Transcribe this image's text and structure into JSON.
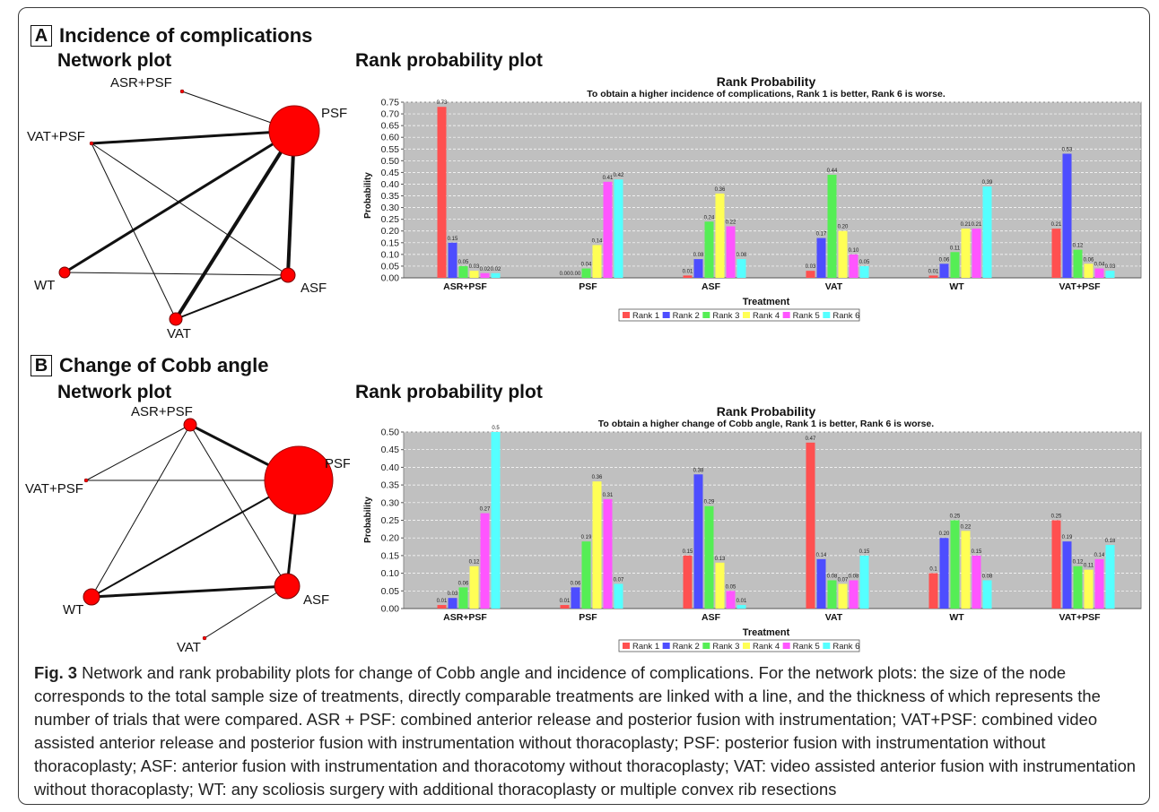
{
  "panels": [
    {
      "letter": "A",
      "title": "Incidence of complications",
      "network_title": "Network plot",
      "rank_title": "Rank probability plot"
    },
    {
      "letter": "B",
      "title": "Change of Cobb angle",
      "network_title": "Network plot",
      "rank_title": "Rank probability plot"
    }
  ],
  "network_A": {
    "nodes": [
      "ASR+PSF",
      "PSF",
      "VAT+PSF",
      "WT",
      "ASF",
      "VAT"
    ],
    "edges": [
      [
        "ASR+PSF",
        "PSF"
      ],
      [
        "VAT+PSF",
        "PSF"
      ],
      [
        "VAT+PSF",
        "ASF"
      ],
      [
        "VAT+PSF",
        "VAT"
      ],
      [
        "PSF",
        "WT"
      ],
      [
        "PSF",
        "VAT"
      ],
      [
        "PSF",
        "ASF"
      ],
      [
        "WT",
        "ASF"
      ],
      [
        "VAT",
        "ASF"
      ]
    ]
  },
  "network_B": {
    "nodes": [
      "ASR+PSF",
      "PSF",
      "VAT+PSF",
      "WT",
      "ASF",
      "VAT"
    ],
    "edges": [
      [
        "ASR+PSF",
        "PSF"
      ],
      [
        "ASR+PSF",
        "WT"
      ],
      [
        "ASR+PSF",
        "ASF"
      ],
      [
        "VAT+PSF",
        "ASR+PSF"
      ],
      [
        "VAT+PSF",
        "PSF"
      ],
      [
        "PSF",
        "WT"
      ],
      [
        "PSF",
        "ASF"
      ],
      [
        "WT",
        "ASF"
      ],
      [
        "ASF",
        "VAT"
      ]
    ]
  },
  "colors": {
    "rank1": "#ff5050",
    "rank2": "#4d4dff",
    "rank3": "#55ee55",
    "rank4": "#ffff55",
    "rank5": "#ff55ff",
    "rank6": "#55ffff",
    "plot_bg": "#c0c0c0",
    "node": "#ff0000"
  },
  "chart_data": [
    {
      "type": "bar",
      "title": "Rank Probability",
      "subtitle": "To obtain  a higher incidence of complications, Rank 1 is better, Rank 6 is worse.",
      "xlabel": "Treatment",
      "ylabel": "Probability",
      "ylim": [
        0,
        0.75
      ],
      "yticks": [
        "0.00",
        "0.05",
        "0.10",
        "0.15",
        "0.20",
        "0.25",
        "0.30",
        "0.35",
        "0.40",
        "0.45",
        "0.50",
        "0.55",
        "0.60",
        "0.65",
        "0.70",
        "0.75"
      ],
      "grid": true,
      "legend": "bottom",
      "categories": [
        "ASR+PSF",
        "PSF",
        "ASF",
        "VAT",
        "WT",
        "VAT+PSF"
      ],
      "series": [
        {
          "name": "Rank 1",
          "values": [
            0.73,
            0.0,
            0.01,
            0.03,
            0.01,
            0.21
          ],
          "labels": [
            "0.73",
            "0.00",
            "0.01",
            "0.03",
            "0.01",
            "0.21"
          ]
        },
        {
          "name": "Rank 2",
          "values": [
            0.15,
            0.0,
            0.08,
            0.17,
            0.06,
            0.53
          ],
          "labels": [
            "0.15",
            "0.00",
            "0.08",
            "0.17",
            "0.06",
            "0.53"
          ]
        },
        {
          "name": "Rank 3",
          "values": [
            0.05,
            0.04,
            0.24,
            0.44,
            0.11,
            0.12
          ],
          "labels": [
            "0.05",
            "0.04",
            "0.24",
            "0.44",
            "0.11",
            "0.12"
          ]
        },
        {
          "name": "Rank 4",
          "values": [
            0.03,
            0.14,
            0.36,
            0.2,
            0.21,
            0.06
          ],
          "labels": [
            "0.03",
            "0.14",
            "0.36",
            "0.20",
            "0.21",
            "0.06"
          ]
        },
        {
          "name": "Rank 5",
          "values": [
            0.02,
            0.41,
            0.22,
            0.1,
            0.21,
            0.04
          ],
          "labels": [
            "0.02",
            "0.41",
            "0.22",
            "0.10",
            "0.21",
            "0.04"
          ]
        },
        {
          "name": "Rank 6",
          "values": [
            0.02,
            0.42,
            0.08,
            0.05,
            0.39,
            0.03
          ],
          "labels": [
            "0.02",
            "0.42",
            "0.08",
            "0.05",
            "0.39",
            "0.03"
          ]
        }
      ]
    },
    {
      "type": "bar",
      "title": "Rank Probability",
      "subtitle": "To obtain  a higher change of Cobb angle, Rank 1 is better, Rank 6 is worse.",
      "xlabel": "Treatment",
      "ylabel": "Probability",
      "ylim": [
        0,
        0.5
      ],
      "yticks": [
        "0.00",
        "0.05",
        "0.10",
        "0.15",
        "0.20",
        "0.25",
        "0.30",
        "0.35",
        "0.40",
        "0.45",
        "0.50"
      ],
      "grid": true,
      "legend": "bottom",
      "categories": [
        "ASR+PSF",
        "PSF",
        "ASF",
        "VAT",
        "WT",
        "VAT+PSF"
      ],
      "series": [
        {
          "name": "Rank 1",
          "values": [
            0.01,
            0.01,
            0.15,
            0.47,
            0.1,
            0.25
          ],
          "labels": [
            "0.01",
            "0.01",
            "0.15",
            "0.47",
            "0.1",
            "0.25"
          ]
        },
        {
          "name": "Rank 2",
          "values": [
            0.03,
            0.06,
            0.38,
            0.14,
            0.2,
            0.19
          ],
          "labels": [
            "0.03",
            "0.06",
            "0.38",
            "0.14",
            "0.20",
            "0.19"
          ]
        },
        {
          "name": "Rank 3",
          "values": [
            0.06,
            0.19,
            0.29,
            0.08,
            0.25,
            0.12
          ],
          "labels": [
            "0.06",
            "0.19",
            "0.29",
            "0.08",
            "0.25",
            "0.12"
          ]
        },
        {
          "name": "Rank 4",
          "values": [
            0.12,
            0.36,
            0.13,
            0.07,
            0.22,
            0.11
          ],
          "labels": [
            "0.12",
            "0.36",
            "0.13",
            "0.07",
            "0.22",
            "0.11"
          ]
        },
        {
          "name": "Rank 5",
          "values": [
            0.27,
            0.31,
            0.05,
            0.08,
            0.15,
            0.14
          ],
          "labels": [
            "0.27",
            "0.31",
            "0.05",
            "0.08",
            "0.15",
            "0.14"
          ]
        },
        {
          "name": "Rank 6",
          "values": [
            0.5,
            0.07,
            0.01,
            0.15,
            0.08,
            0.18
          ],
          "labels": [
            "0.5",
            "0.07",
            "0.01",
            "0.15",
            "0.08",
            "0.18"
          ]
        }
      ]
    }
  ],
  "caption": {
    "label": "Fig. 3",
    "text": "Network and rank probability plots for change of Cobb angle and incidence of complications. For the network plots: the size of the node corresponds to the total sample size of treatments, directly comparable treatments are linked with a line, and the thickness of which represents the number of trials that were compared. ASR + PSF: combined anterior release and posterior fusion with instrumentation; VAT+PSF: combined video assisted anterior release and posterior fusion with instrumentation without thoracoplasty; PSF: posterior fusion with instrumentation without thoracoplasty; ASF: anterior fusion with instrumentation and thoracotomy without thoracoplasty; VAT: video assisted anterior fusion with instrumentation without thoracoplasty; WT: any scoliosis surgery with additional thoracoplasty or multiple convex rib resections"
  }
}
